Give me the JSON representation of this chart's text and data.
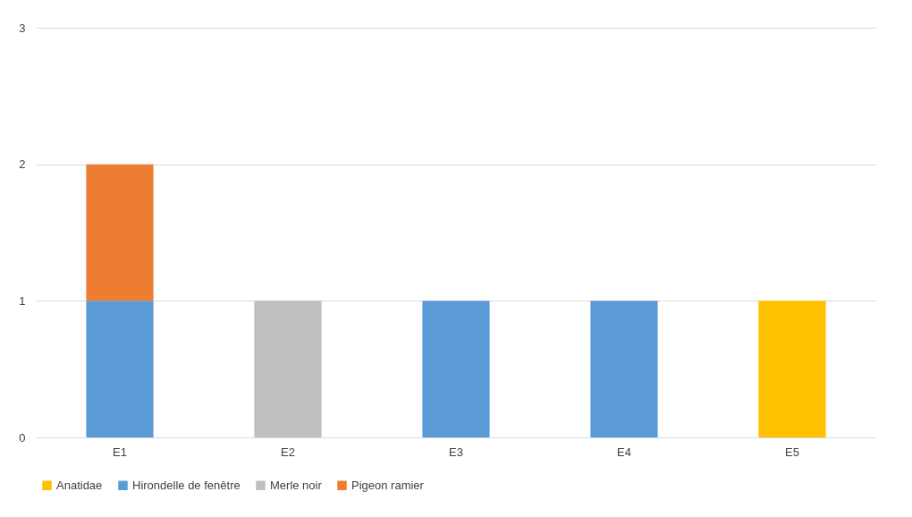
{
  "chart_data": {
    "type": "bar",
    "stacked": true,
    "categories": [
      "E1",
      "E2",
      "E3",
      "E4",
      "E5"
    ],
    "series": [
      {
        "name": "Anatidae",
        "color": "#ffc000",
        "values": [
          null,
          null,
          null,
          null,
          1
        ]
      },
      {
        "name": "Hirondelle de fenêtre",
        "color": "#5b9bd5",
        "values": [
          1,
          null,
          1,
          1,
          null
        ]
      },
      {
        "name": "Merle noir",
        "color": "#bfbfbf",
        "values": [
          null,
          1,
          null,
          null,
          null
        ]
      },
      {
        "name": "Pigeon ramier",
        "color": "#ed7d31",
        "values": [
          1,
          null,
          null,
          null,
          null
        ]
      }
    ],
    "ylim": [
      0,
      3
    ],
    "yticks": [
      0,
      1,
      2,
      3
    ],
    "grid": "y",
    "legend": "bottom"
  }
}
